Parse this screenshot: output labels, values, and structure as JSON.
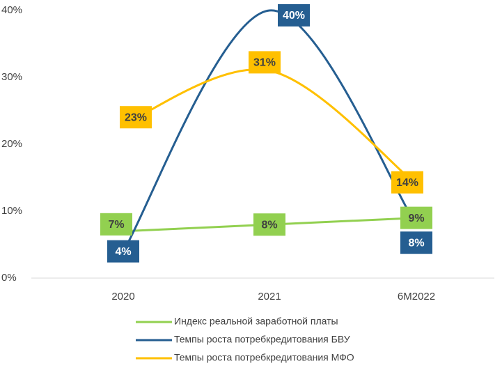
{
  "chart_data": {
    "type": "line",
    "categories": [
      "2020",
      "2021",
      "6M2022"
    ],
    "series": [
      {
        "name": "Индекс реальной заработной платы",
        "color": "#92d050",
        "values": [
          7,
          8,
          9
        ],
        "value_labels": [
          "7%",
          "8%",
          "9%"
        ]
      },
      {
        "name": "Темпы роста потребкредитования БВУ",
        "color": "#255e91",
        "values": [
          4,
          40,
          8
        ],
        "value_labels": [
          "4%",
          "40%",
          "8%"
        ]
      },
      {
        "name": "Темпы роста потребкредитования МФО",
        "color": "#ffc000",
        "values": [
          23,
          31,
          14
        ],
        "value_labels": [
          "23%",
          "31%",
          "14%"
        ]
      }
    ],
    "ylim": [
      0,
      40
    ],
    "yticks": [
      {
        "value": 0,
        "label": "0%"
      },
      {
        "value": 10,
        "label": "10%"
      },
      {
        "value": 20,
        "label": "20%"
      },
      {
        "value": 30,
        "label": "30%"
      },
      {
        "value": 40,
        "label": "40%"
      }
    ],
    "grid": false,
    "legend": "bottom"
  }
}
